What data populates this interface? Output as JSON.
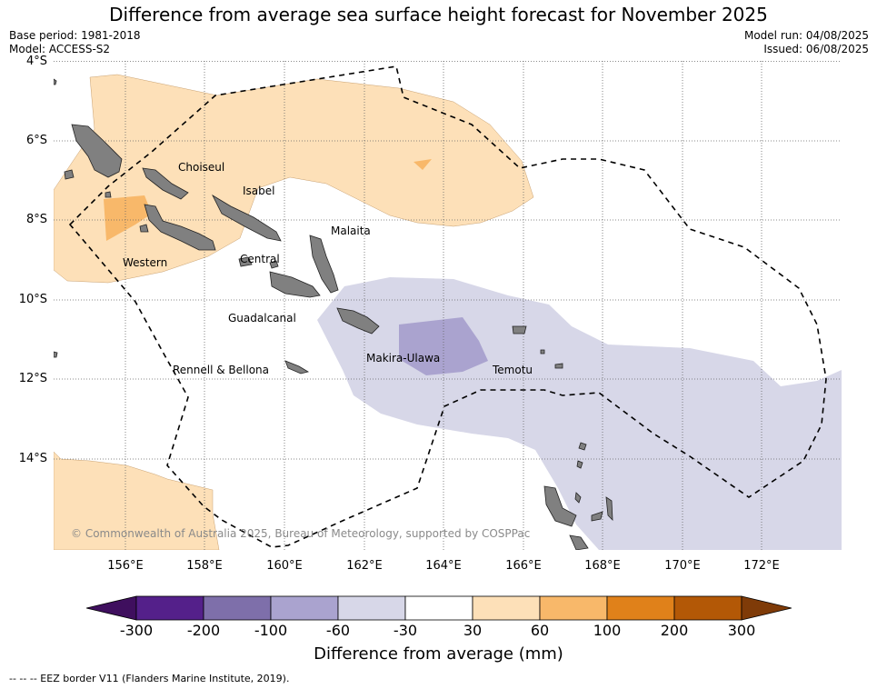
{
  "title": "Difference from average sea surface height forecast for November 2025",
  "meta": {
    "base_period": "Base period: 1981-2018",
    "model": "Model: ACCESS-S2",
    "model_run": "Model run: 04/08/2025",
    "issued": "Issued: 06/08/2025"
  },
  "axes": {
    "lat_labels": [
      "4°S",
      "6°S",
      "8°S",
      "10°S",
      "12°S",
      "14°S"
    ],
    "lon_labels": [
      "156°E",
      "158°E",
      "160°E",
      "162°E",
      "164°E",
      "166°E",
      "168°E",
      "170°E",
      "172°E"
    ]
  },
  "regions": [
    "Choiseul",
    "Isabel",
    "Malaita",
    "Western",
    "Central",
    "Guadalcanal",
    "Makira-Ulawa",
    "Rennell & Bellona",
    "Temotu"
  ],
  "copyright": "© Commonwealth of Australia 2025, Bureau of Meteorology, supported by COSPPac",
  "colorbar": {
    "title": "Difference from average (mm)",
    "ticks": [
      "-300",
      "-200",
      "-100",
      "-60",
      "-30",
      "30",
      "60",
      "100",
      "200",
      "300"
    ],
    "colors": [
      "#3f0f5e",
      "#54208a",
      "#7e6faa",
      "#aaa3cf",
      "#d7d7e8",
      "#ffffff",
      "#fde0b8",
      "#f8b86a",
      "#e0811a",
      "#b35806",
      "#7f3b08"
    ]
  },
  "eez_note": "--  --  -- EEZ border V11 (Flanders Marine Institute, 2019)."
}
